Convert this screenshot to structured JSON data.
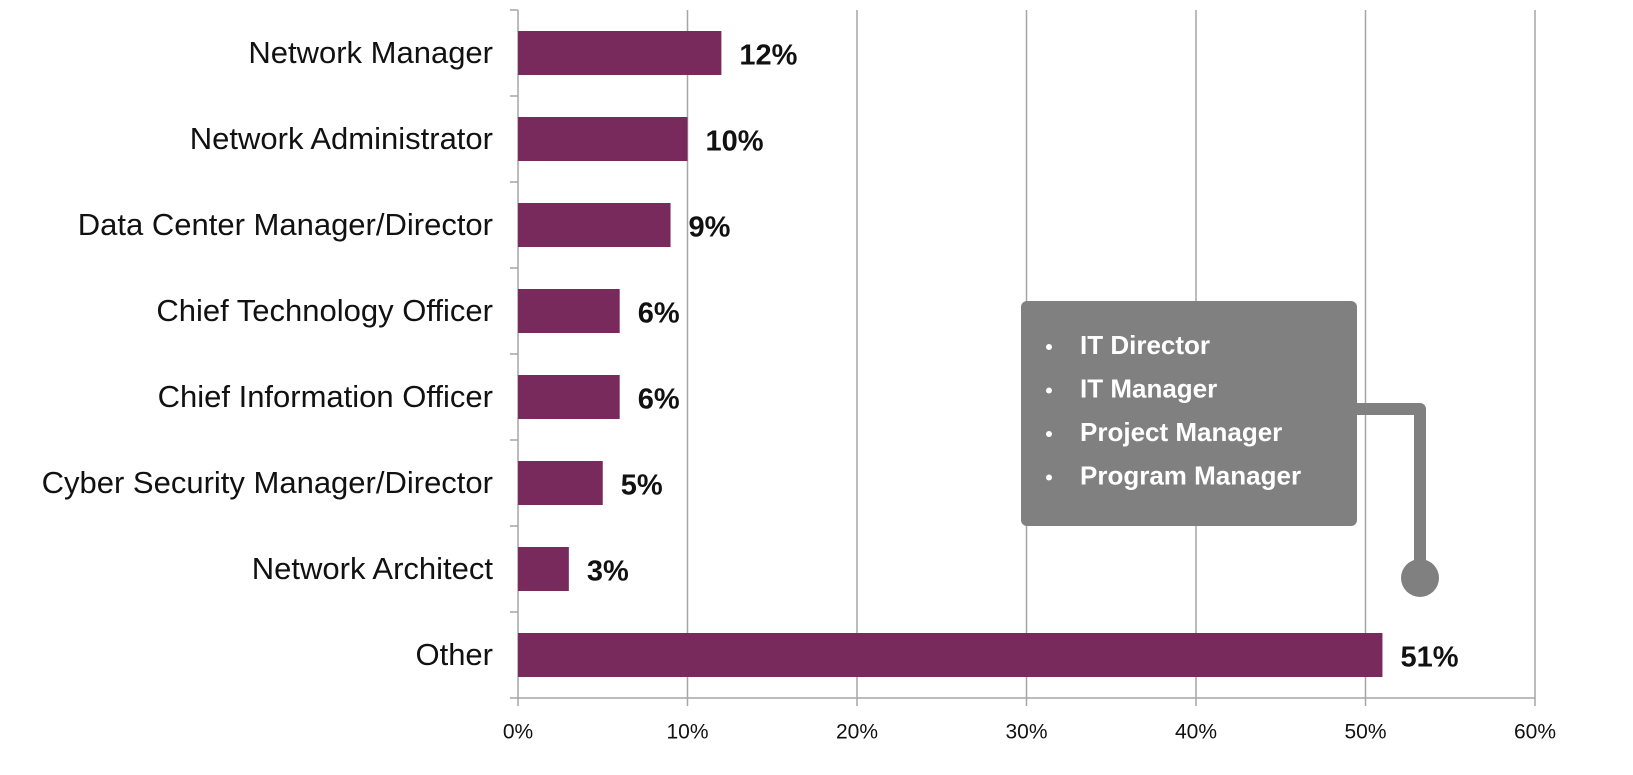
{
  "chart_data": {
    "type": "bar",
    "orientation": "horizontal",
    "categories": [
      "Network Manager",
      "Network Administrator",
      "Data Center Manager/Director",
      "Chief Technology Officer",
      "Chief Information Officer",
      "Cyber Security Manager/Director",
      "Network Architect",
      "Other"
    ],
    "values": [
      12,
      10,
      9,
      6,
      6,
      5,
      3,
      51
    ],
    "value_labels": [
      "12%",
      "10%",
      "9%",
      "6%",
      "6%",
      "5%",
      "3%",
      "51%"
    ],
    "color": "#772a5b",
    "xlim": [
      0,
      60
    ],
    "xticks": [
      {
        "value": 0,
        "label": "0%"
      },
      {
        "value": 10,
        "label": "10%"
      },
      {
        "value": 20,
        "label": "20%"
      },
      {
        "value": 30,
        "label": "30%"
      },
      {
        "value": 40,
        "label": "40%"
      },
      {
        "value": 50,
        "label": "50%"
      },
      {
        "value": 60,
        "label": "60%"
      }
    ],
    "grid": true,
    "annotation": {
      "items": [
        "IT Director",
        "IT Manager",
        "Project Manager",
        "Program Manager"
      ]
    }
  }
}
